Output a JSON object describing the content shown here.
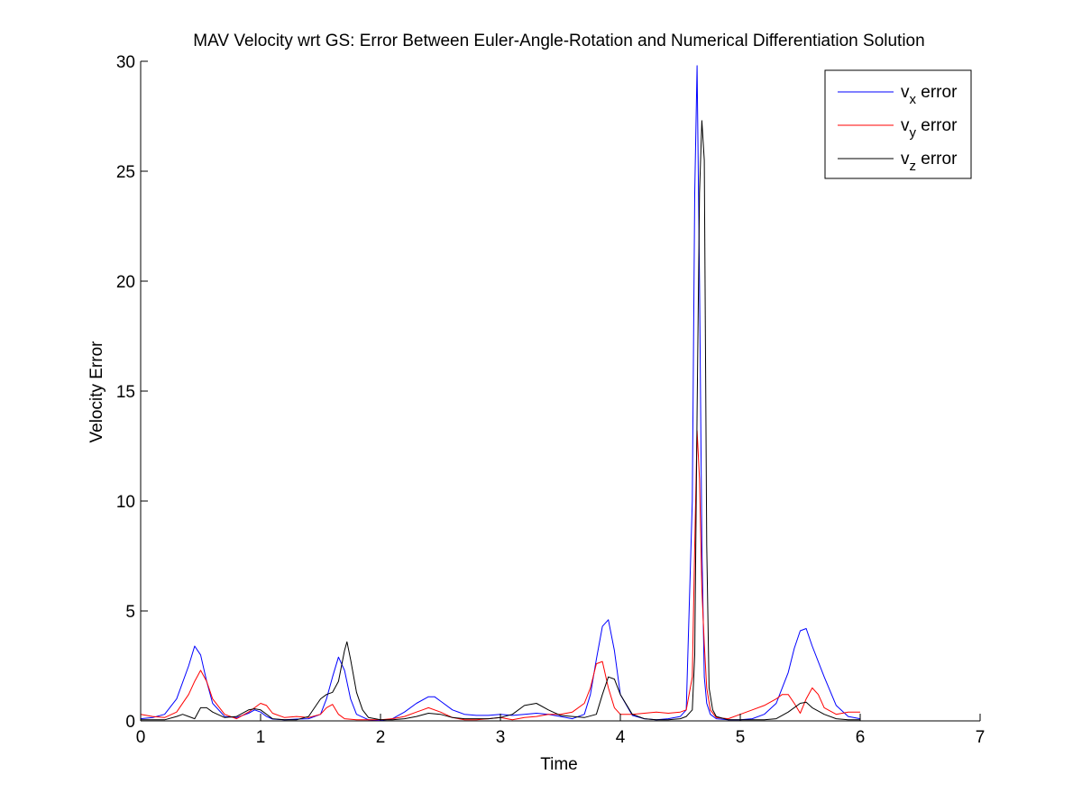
{
  "chart_data": {
    "type": "line",
    "title": "MAV Velocity wrt GS: Error Between Euler-Angle-Rotation and Numerical Differentiation Solution",
    "xlabel": "Time",
    "ylabel": "Velocity Error",
    "xlim": [
      0,
      7
    ],
    "ylim": [
      0,
      30
    ],
    "xticks": [
      "0",
      "1",
      "2",
      "3",
      "4",
      "5",
      "6",
      "7"
    ],
    "yticks": [
      "0",
      "5",
      "10",
      "15",
      "20",
      "25",
      "30"
    ],
    "grid": false,
    "legend_position": "top-right",
    "series": [
      {
        "name_main": "v",
        "name_sub": "x",
        "name_suffix": " error",
        "color": "#0000ff",
        "x": [
          0,
          0.1,
          0.2,
          0.3,
          0.4,
          0.45,
          0.5,
          0.55,
          0.6,
          0.7,
          0.8,
          0.9,
          0.95,
          1.0,
          1.05,
          1.1,
          1.2,
          1.3,
          1.4,
          1.5,
          1.55,
          1.6,
          1.65,
          1.7,
          1.75,
          1.8,
          1.9,
          2.0,
          2.1,
          2.2,
          2.3,
          2.4,
          2.45,
          2.5,
          2.6,
          2.7,
          2.8,
          2.9,
          3.0,
          3.1,
          3.2,
          3.3,
          3.4,
          3.5,
          3.6,
          3.7,
          3.75,
          3.8,
          3.85,
          3.9,
          3.95,
          4.0,
          4.1,
          4.2,
          4.3,
          4.4,
          4.5,
          4.55,
          4.6,
          4.62,
          4.64,
          4.66,
          4.68,
          4.7,
          4.72,
          4.75,
          4.8,
          4.9,
          5.0,
          5.1,
          5.2,
          5.3,
          5.4,
          5.45,
          5.5,
          5.55,
          5.6,
          5.7,
          5.8,
          5.9,
          6.0
        ],
        "y": [
          0.1,
          0.15,
          0.3,
          1.0,
          2.5,
          3.4,
          3.0,
          1.8,
          0.8,
          0.2,
          0.15,
          0.35,
          0.5,
          0.4,
          0.2,
          0.08,
          0.05,
          0.08,
          0.1,
          0.3,
          1.0,
          2.0,
          2.9,
          2.3,
          1.0,
          0.3,
          0.05,
          0.02,
          0.1,
          0.4,
          0.8,
          1.1,
          1.1,
          0.9,
          0.5,
          0.3,
          0.25,
          0.25,
          0.3,
          0.25,
          0.3,
          0.35,
          0.3,
          0.2,
          0.1,
          0.3,
          1.2,
          2.8,
          4.3,
          4.6,
          3.2,
          1.2,
          0.25,
          0.1,
          0.05,
          0.1,
          0.2,
          0.5,
          10.0,
          24.0,
          29.8,
          20.0,
          8.0,
          2.0,
          0.8,
          0.3,
          0.1,
          0.05,
          0.05,
          0.1,
          0.3,
          0.8,
          2.2,
          3.3,
          4.1,
          4.2,
          3.4,
          2.0,
          0.7,
          0.2,
          0.1
        ]
      },
      {
        "name_main": "v",
        "name_sub": "y",
        "name_suffix": " error",
        "color": "#ff0000",
        "x": [
          0,
          0.1,
          0.2,
          0.3,
          0.4,
          0.45,
          0.5,
          0.55,
          0.6,
          0.7,
          0.8,
          0.9,
          0.95,
          1.0,
          1.05,
          1.1,
          1.2,
          1.3,
          1.4,
          1.5,
          1.55,
          1.6,
          1.65,
          1.7,
          1.8,
          1.9,
          2.0,
          2.1,
          2.2,
          2.3,
          2.35,
          2.4,
          2.5,
          2.6,
          2.7,
          2.8,
          2.9,
          3.0,
          3.1,
          3.2,
          3.3,
          3.4,
          3.5,
          3.6,
          3.7,
          3.75,
          3.8,
          3.85,
          3.9,
          3.95,
          4.0,
          4.1,
          4.2,
          4.3,
          4.4,
          4.5,
          4.55,
          4.6,
          4.62,
          4.64,
          4.66,
          4.68,
          4.7,
          4.72,
          4.75,
          4.8,
          4.9,
          5.0,
          5.1,
          5.2,
          5.3,
          5.35,
          5.4,
          5.45,
          5.5,
          5.55,
          5.6,
          5.65,
          5.7,
          5.8,
          5.9,
          6.0
        ],
        "y": [
          0.3,
          0.2,
          0.15,
          0.4,
          1.2,
          1.8,
          2.3,
          1.8,
          1.0,
          0.3,
          0.1,
          0.4,
          0.6,
          0.8,
          0.7,
          0.35,
          0.15,
          0.2,
          0.15,
          0.3,
          0.6,
          0.75,
          0.3,
          0.1,
          0.05,
          0.05,
          0.05,
          0.1,
          0.2,
          0.4,
          0.5,
          0.6,
          0.4,
          0.15,
          0.05,
          0.05,
          0.1,
          0.15,
          0.05,
          0.15,
          0.2,
          0.3,
          0.3,
          0.4,
          0.8,
          1.5,
          2.6,
          2.7,
          1.5,
          0.6,
          0.3,
          0.3,
          0.35,
          0.4,
          0.35,
          0.4,
          0.5,
          2.0,
          8.0,
          13.2,
          11.0,
          6.0,
          3.5,
          1.5,
          0.5,
          0.15,
          0.1,
          0.3,
          0.5,
          0.7,
          1.0,
          1.2,
          1.2,
          0.8,
          0.35,
          1.0,
          1.5,
          1.2,
          0.6,
          0.3,
          0.4,
          0.4
        ]
      },
      {
        "name_main": "v",
        "name_sub": "z",
        "name_suffix": " error",
        "color": "#000000",
        "x": [
          0,
          0.1,
          0.2,
          0.3,
          0.35,
          0.4,
          0.45,
          0.5,
          0.55,
          0.6,
          0.7,
          0.8,
          0.9,
          0.95,
          1.0,
          1.1,
          1.2,
          1.3,
          1.4,
          1.5,
          1.55,
          1.6,
          1.65,
          1.7,
          1.72,
          1.75,
          1.8,
          1.85,
          1.9,
          2.0,
          2.1,
          2.2,
          2.3,
          2.4,
          2.5,
          2.6,
          2.7,
          2.8,
          2.9,
          3.0,
          3.1,
          3.2,
          3.3,
          3.4,
          3.5,
          3.6,
          3.7,
          3.8,
          3.85,
          3.9,
          3.95,
          4.0,
          4.1,
          4.2,
          4.3,
          4.4,
          4.5,
          4.55,
          4.6,
          4.62,
          4.64,
          4.66,
          4.68,
          4.7,
          4.72,
          4.74,
          4.77,
          4.8,
          4.9,
          5.0,
          5.1,
          5.2,
          5.3,
          5.4,
          5.5,
          5.55,
          5.6,
          5.7,
          5.8,
          5.9,
          6.0
        ],
        "y": [
          0.05,
          0.05,
          0.05,
          0.2,
          0.3,
          0.2,
          0.1,
          0.6,
          0.6,
          0.4,
          0.15,
          0.2,
          0.5,
          0.55,
          0.5,
          0.1,
          0.05,
          0.05,
          0.2,
          1.0,
          1.2,
          1.3,
          1.8,
          3.2,
          3.6,
          2.8,
          1.3,
          0.5,
          0.15,
          0.05,
          0.05,
          0.1,
          0.2,
          0.35,
          0.3,
          0.15,
          0.1,
          0.1,
          0.1,
          0.15,
          0.3,
          0.7,
          0.8,
          0.5,
          0.25,
          0.2,
          0.15,
          0.3,
          1.2,
          2.0,
          1.9,
          1.2,
          0.3,
          0.1,
          0.05,
          0.05,
          0.1,
          0.2,
          0.5,
          3.0,
          14.0,
          24.0,
          27.3,
          25.5,
          8.0,
          1.5,
          0.5,
          0.2,
          0.05,
          0.05,
          0.05,
          0.05,
          0.1,
          0.4,
          0.8,
          0.85,
          0.6,
          0.3,
          0.1,
          0.05,
          0.05
        ]
      }
    ]
  }
}
